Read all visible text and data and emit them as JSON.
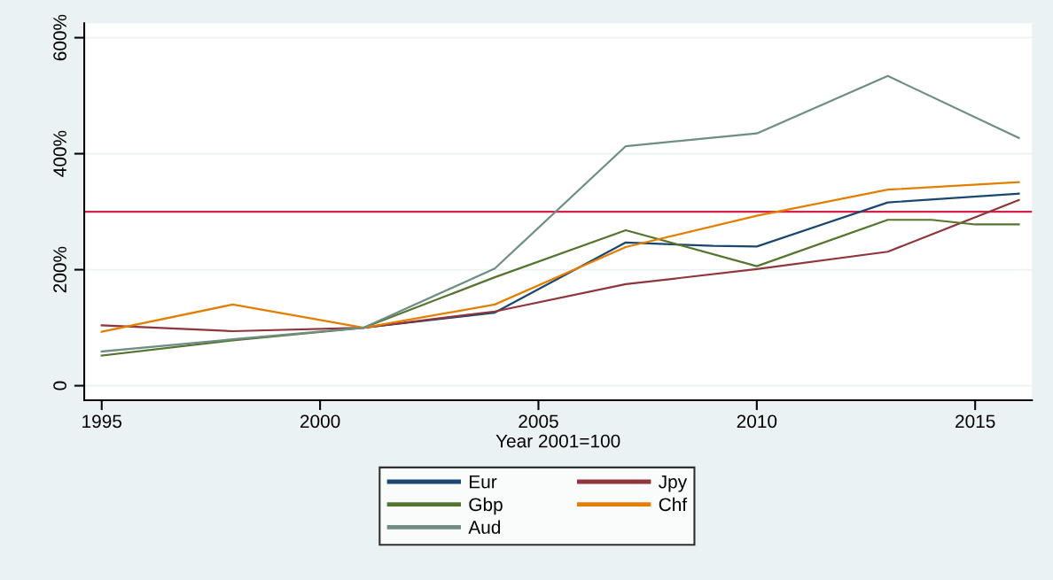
{
  "chart_data": {
    "type": "line",
    "xlabel": "Year 2001=100",
    "xlim": [
      1994.6,
      2016.3
    ],
    "xticks": [
      1995,
      2000,
      2005,
      2010,
      2015
    ],
    "ylim": [
      -25,
      625
    ],
    "yticks": [
      {
        "value": 0,
        "label": "0"
      },
      {
        "value": 200,
        "label": "200%"
      },
      {
        "value": 400,
        "label": "400%"
      },
      {
        "value": 600,
        "label": "600%"
      }
    ],
    "grid": "y",
    "legend": "bottom",
    "marker": "none",
    "line_style": "solid",
    "ref_lines": [
      {
        "axis": "y",
        "value": 300,
        "label": null,
        "color": "#d6204a"
      }
    ],
    "series": [
      {
        "name": "Eur",
        "color": "#1a476f",
        "x": [
          2001,
          2004,
          2007,
          2009,
          2010,
          2013,
          2016
        ],
        "values": [
          100,
          126,
          247,
          241,
          240,
          316,
          331
        ]
      },
      {
        "name": "Jpy",
        "color": "#90353b",
        "x": [
          1995,
          1998,
          2001,
          2004,
          2007,
          2010,
          2013,
          2016
        ],
        "values": [
          104,
          94,
          100,
          128,
          175,
          201,
          231,
          320
        ]
      },
      {
        "name": "Gbp",
        "color": "#55752f",
        "x": [
          1995,
          1998,
          2001,
          2004,
          2007,
          2010,
          2013,
          2014,
          2015,
          2016
        ],
        "values": [
          52,
          78,
          100,
          187,
          268,
          206,
          286,
          286,
          278,
          278
        ]
      },
      {
        "name": "Chf",
        "color": "#e37e00",
        "x": [
          1995,
          1998,
          2001,
          2004,
          2007,
          2010,
          2013,
          2016
        ],
        "values": [
          93,
          140,
          100,
          140,
          239,
          293,
          338,
          351
        ]
      },
      {
        "name": "Aud",
        "color": "#6e8e84",
        "x": [
          1995,
          1998,
          2001,
          2004,
          2007,
          2010,
          2013,
          2016
        ],
        "values": [
          59,
          80,
          100,
          202,
          413,
          435,
          534,
          427
        ]
      }
    ]
  }
}
